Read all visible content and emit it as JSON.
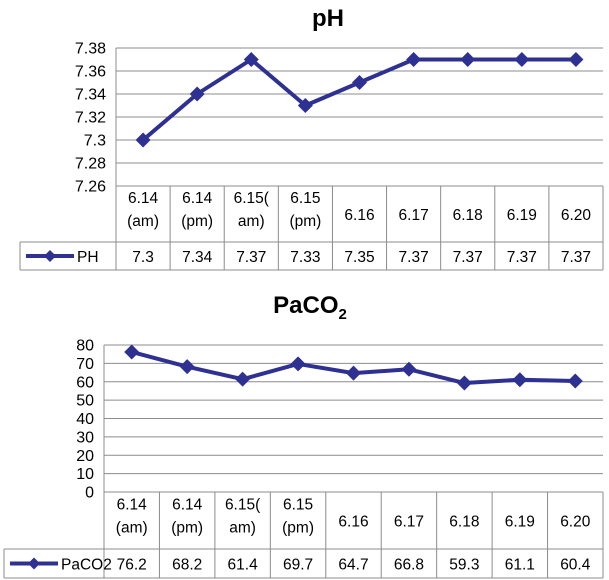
{
  "chart_data": [
    {
      "type": "line",
      "title": "pH",
      "categories": [
        [
          "6.14",
          "(am)"
        ],
        [
          "6.14",
          "(pm)"
        ],
        [
          "6.15(",
          "am)"
        ],
        [
          "6.15",
          "(pm)"
        ],
        [
          "6.16"
        ],
        [
          "6.17"
        ],
        [
          "6.18"
        ],
        [
          "6.19"
        ],
        [
          "6.20"
        ]
      ],
      "series": [
        {
          "name": "PH",
          "values": [
            7.3,
            7.34,
            7.37,
            7.33,
            7.35,
            7.37,
            7.37,
            7.37,
            7.37
          ],
          "labels": [
            "7.3",
            "7.34",
            "7.37",
            "7.33",
            "7.35",
            "7.37",
            "7.37",
            "7.37",
            "7.37"
          ]
        }
      ],
      "yticks": [
        "7.26",
        "7.28",
        "7.3",
        "7.32",
        "7.34",
        "7.36",
        "7.38"
      ],
      "ylim": [
        7.26,
        7.38
      ],
      "ystep": 0.02,
      "grid": true,
      "data_table": true,
      "color": "#2e3192"
    },
    {
      "type": "line",
      "title": "PaCO",
      "title_subscript": "2",
      "categories": [
        [
          "6.14",
          "(am)"
        ],
        [
          "6.14",
          "(pm)"
        ],
        [
          "6.15(",
          "am)"
        ],
        [
          "6.15",
          "(pm)"
        ],
        [
          "6.16"
        ],
        [
          "6.17"
        ],
        [
          "6.18"
        ],
        [
          "6.19"
        ],
        [
          "6.20"
        ]
      ],
      "series": [
        {
          "name": "PaCO2",
          "values": [
            76.2,
            68.2,
            61.4,
            69.7,
            64.7,
            66.8,
            59.3,
            61.1,
            60.4
          ],
          "labels": [
            "76.2",
            "68.2",
            "61.4",
            "69.7",
            "64.7",
            "66.8",
            "59.3",
            "61.1",
            "60.4"
          ]
        }
      ],
      "yticks": [
        "0",
        "10",
        "20",
        "30",
        "40",
        "50",
        "60",
        "70",
        "80"
      ],
      "ylim": [
        0,
        80
      ],
      "ystep": 10,
      "grid": true,
      "data_table": true,
      "color": "#2e3192"
    }
  ]
}
